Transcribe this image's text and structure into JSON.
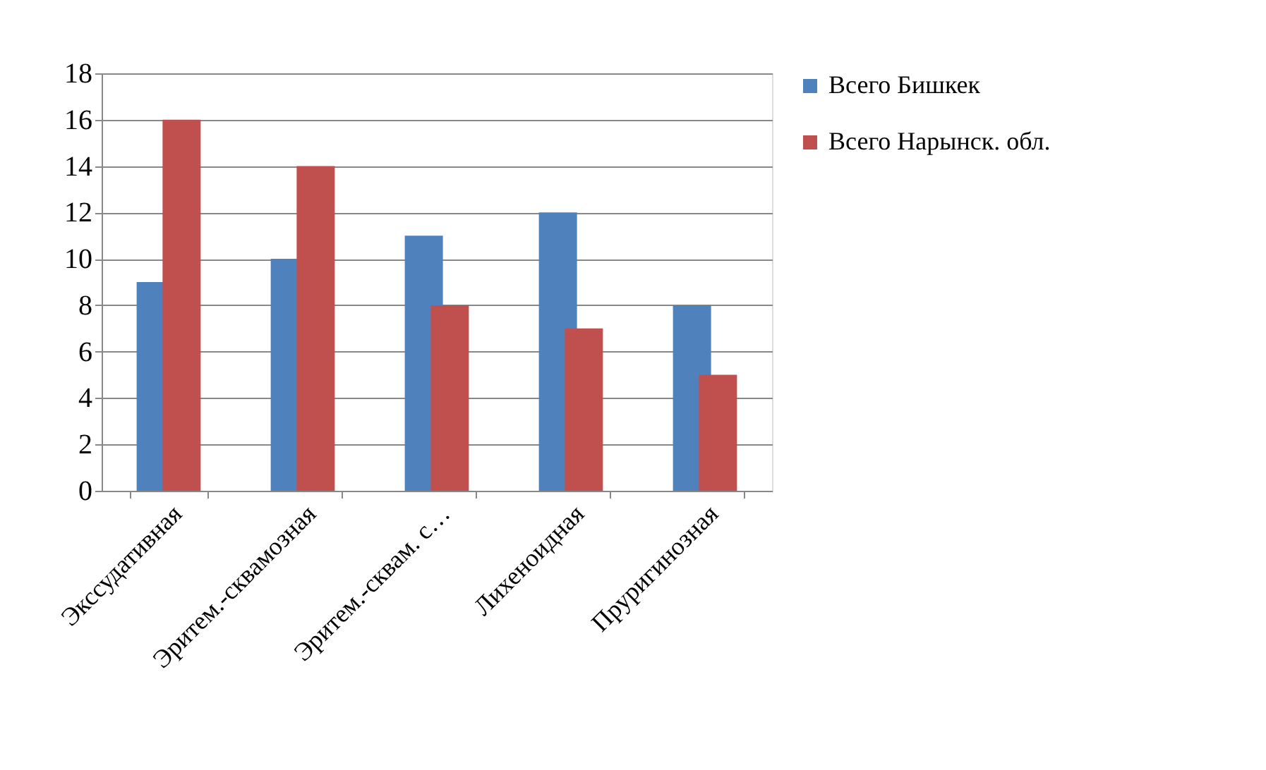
{
  "chart_data": {
    "type": "bar",
    "categories": [
      "Экссудативная",
      "Эритем.-сквамозная",
      "Эритем.-сквам. с…",
      "Лихеноидная",
      "Пруригинозная"
    ],
    "series": [
      {
        "name": "Всего  Бишкек",
        "color": "#4f81bd",
        "values": [
          9,
          10,
          11,
          12,
          8
        ]
      },
      {
        "name": "Всего  Нарынск. обл.",
        "color": "#c0504d",
        "values": [
          16,
          14,
          8,
          7,
          5
        ]
      }
    ],
    "ylim": [
      0,
      18
    ],
    "yticks": [
      0,
      2,
      4,
      6,
      8,
      10,
      12,
      14,
      16,
      18
    ],
    "grid": "y",
    "legend": "right"
  }
}
